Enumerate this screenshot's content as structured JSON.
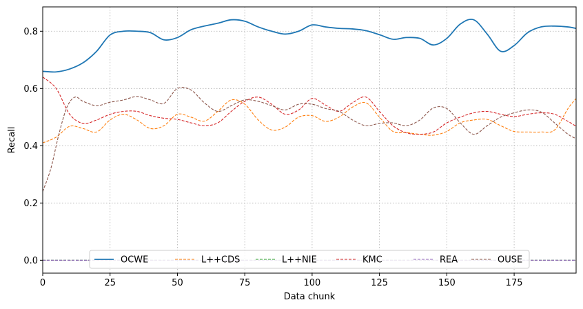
{
  "chart_data": {
    "type": "line",
    "xlabel": "Data chunk",
    "ylabel": "Recall",
    "xlim": [
      0,
      198
    ],
    "ylim": [
      -0.045,
      0.885
    ],
    "xticks": [
      0,
      25,
      50,
      75,
      100,
      125,
      150,
      175
    ],
    "yticks": [
      0.0,
      0.2,
      0.4,
      0.6,
      0.8
    ],
    "xtick_labels": [
      "0",
      "25",
      "50",
      "75",
      "100",
      "125",
      "150",
      "175"
    ],
    "ytick_labels": [
      "0.0",
      "0.2",
      "0.4",
      "0.6",
      "0.8"
    ],
    "grid": true,
    "legend_position": "lower center",
    "series": [
      {
        "name": "OCWE",
        "color": "#1f77b4",
        "style": "solid",
        "x": [
          0,
          5,
          10,
          15,
          20,
          25,
          30,
          35,
          40,
          45,
          50,
          55,
          60,
          65,
          70,
          75,
          80,
          85,
          90,
          95,
          100,
          105,
          110,
          115,
          120,
          125,
          130,
          135,
          140,
          145,
          150,
          155,
          160,
          165,
          170,
          175,
          180,
          185,
          190,
          195,
          198
        ],
        "y": [
          0.66,
          0.658,
          0.668,
          0.69,
          0.73,
          0.787,
          0.8,
          0.8,
          0.795,
          0.77,
          0.778,
          0.805,
          0.818,
          0.828,
          0.84,
          0.835,
          0.815,
          0.8,
          0.79,
          0.8,
          0.822,
          0.815,
          0.81,
          0.808,
          0.802,
          0.788,
          0.772,
          0.778,
          0.775,
          0.752,
          0.775,
          0.825,
          0.84,
          0.79,
          0.73,
          0.75,
          0.795,
          0.815,
          0.818,
          0.815,
          0.81
        ]
      },
      {
        "name": "L++CDS",
        "color": "#ff7f0e",
        "style": "dashed",
        "x": [
          0,
          5,
          10,
          15,
          20,
          25,
          30,
          35,
          40,
          45,
          50,
          55,
          60,
          65,
          70,
          75,
          80,
          85,
          90,
          95,
          100,
          105,
          110,
          115,
          120,
          125,
          130,
          135,
          140,
          145,
          150,
          155,
          160,
          165,
          170,
          175,
          180,
          185,
          190,
          195,
          198
        ],
        "y": [
          0.41,
          0.43,
          0.468,
          0.46,
          0.448,
          0.49,
          0.51,
          0.49,
          0.46,
          0.47,
          0.51,
          0.5,
          0.486,
          0.52,
          0.56,
          0.545,
          0.49,
          0.455,
          0.465,
          0.5,
          0.505,
          0.485,
          0.5,
          0.535,
          0.55,
          0.5,
          0.45,
          0.446,
          0.44,
          0.437,
          0.45,
          0.48,
          0.49,
          0.492,
          0.47,
          0.45,
          0.448,
          0.448,
          0.455,
          0.53,
          0.565
        ]
      },
      {
        "name": "L++NIE",
        "color": "#2ca02c",
        "style": "dashed",
        "x": [
          0,
          198
        ],
        "y": [
          0.0,
          0.0
        ]
      },
      {
        "name": "KMC",
        "color": "#d62728",
        "style": "dashed",
        "x": [
          0,
          5,
          10,
          15,
          20,
          25,
          30,
          35,
          40,
          45,
          50,
          55,
          60,
          65,
          70,
          75,
          80,
          85,
          90,
          95,
          100,
          105,
          110,
          115,
          120,
          125,
          130,
          135,
          140,
          145,
          150,
          155,
          160,
          165,
          170,
          175,
          180,
          185,
          190,
          195,
          198
        ],
        "y": [
          0.64,
          0.6,
          0.51,
          0.478,
          0.49,
          0.51,
          0.52,
          0.52,
          0.505,
          0.496,
          0.492,
          0.48,
          0.47,
          0.48,
          0.52,
          0.555,
          0.57,
          0.545,
          0.51,
          0.525,
          0.565,
          0.542,
          0.52,
          0.55,
          0.57,
          0.52,
          0.47,
          0.445,
          0.44,
          0.448,
          0.48,
          0.5,
          0.515,
          0.52,
          0.51,
          0.502,
          0.51,
          0.515,
          0.51,
          0.485,
          0.468
        ]
      },
      {
        "name": "REA",
        "color": "#9467bd",
        "style": "dashed",
        "x": [
          0,
          198
        ],
        "y": [
          0.0,
          0.0
        ]
      },
      {
        "name": "OUSE",
        "color": "#8c564b",
        "style": "dashed",
        "x": [
          0,
          3,
          6,
          9,
          12,
          15,
          20,
          25,
          30,
          35,
          40,
          45,
          50,
          55,
          60,
          65,
          70,
          75,
          80,
          85,
          90,
          95,
          100,
          105,
          110,
          115,
          120,
          125,
          130,
          135,
          140,
          145,
          150,
          155,
          160,
          165,
          170,
          175,
          180,
          185,
          190,
          195,
          198
        ],
        "y": [
          0.24,
          0.32,
          0.44,
          0.535,
          0.57,
          0.555,
          0.54,
          0.552,
          0.56,
          0.572,
          0.56,
          0.548,
          0.6,
          0.595,
          0.55,
          0.52,
          0.54,
          0.56,
          0.555,
          0.54,
          0.525,
          0.545,
          0.545,
          0.53,
          0.52,
          0.49,
          0.47,
          0.478,
          0.48,
          0.47,
          0.49,
          0.532,
          0.53,
          0.48,
          0.44,
          0.47,
          0.5,
          0.515,
          0.525,
          0.518,
          0.48,
          0.44,
          0.425
        ]
      }
    ]
  }
}
